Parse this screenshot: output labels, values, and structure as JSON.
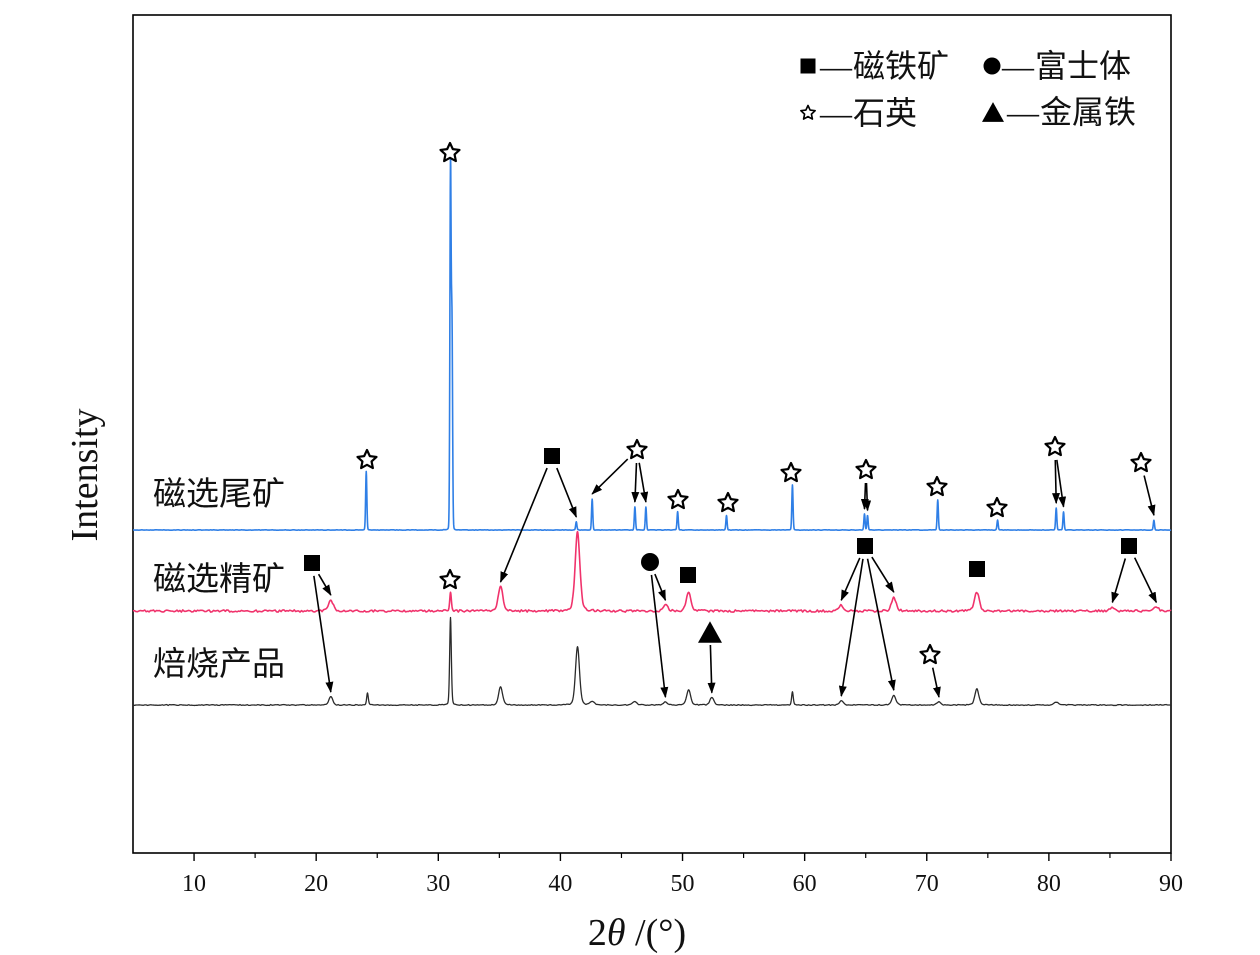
{
  "chart_data": {
    "type": "line",
    "title": "",
    "xlabel": "2θ /(°)",
    "ylabel": "Intensity",
    "xlim": [
      5,
      90
    ],
    "xticks": [
      10,
      20,
      30,
      40,
      50,
      60,
      70,
      80,
      90
    ],
    "yticks": [],
    "grid": false,
    "stacked": true,
    "series": [
      {
        "name": "磁选尾矿",
        "color": "#2f7fe6",
        "peaks": [
          [
            24.1,
            16
          ],
          [
            31.0,
            100
          ],
          [
            31.12,
            55
          ],
          [
            41.3,
            2.2
          ],
          [
            42.6,
            8.5
          ],
          [
            46.1,
            6.3
          ],
          [
            47.0,
            6.3
          ],
          [
            49.6,
            5
          ],
          [
            53.6,
            4
          ],
          [
            59.0,
            12.3
          ],
          [
            64.9,
            4.4
          ],
          [
            65.15,
            4
          ],
          [
            70.9,
            8.2
          ],
          [
            75.8,
            2.7
          ],
          [
            80.6,
            6
          ],
          [
            81.2,
            5
          ],
          [
            88.6,
            2.7
          ]
        ]
      },
      {
        "name": "磁选精矿",
        "color": "#f0336c",
        "peaks": [
          [
            21.2,
            3
          ],
          [
            31.0,
            5
          ],
          [
            35.1,
            6.6
          ],
          [
            41.4,
            21.6
          ],
          [
            48.6,
            1.6
          ],
          [
            50.5,
            5
          ],
          [
            63.0,
            1.6
          ],
          [
            67.3,
            3.8
          ],
          [
            74.1,
            5.2
          ],
          [
            85.2,
            1
          ],
          [
            88.8,
            1
          ]
        ]
      },
      {
        "name": "焙烧产品",
        "color": "#2a2a2a",
        "peaks": [
          [
            21.2,
            2.2
          ],
          [
            24.2,
            3.3
          ],
          [
            31.0,
            24
          ],
          [
            35.1,
            5
          ],
          [
            41.4,
            16
          ],
          [
            42.6,
            1
          ],
          [
            46.1,
            1
          ],
          [
            48.6,
            0.8
          ],
          [
            50.5,
            4.1
          ],
          [
            52.4,
            2
          ],
          [
            59.0,
            3.6
          ],
          [
            63.0,
            1.1
          ],
          [
            67.3,
            2.7
          ],
          [
            71.0,
            0.8
          ],
          [
            74.1,
            4.4
          ],
          [
            80.6,
            0.8
          ]
        ]
      }
    ],
    "legend": {
      "position": "top-right",
      "separator": "—",
      "entries": [
        {
          "marker": "square",
          "label": "磁铁矿"
        },
        {
          "marker": "circle",
          "label": "富士体"
        },
        {
          "marker": "star",
          "label": "石英"
        },
        {
          "marker": "triangle",
          "label": "金属铁"
        }
      ]
    },
    "annotations": [
      {
        "marker": "star",
        "targets": [
          [
            0,
            24.1
          ]
        ]
      },
      {
        "marker": "star",
        "targets": [
          [
            0,
            31.0
          ]
        ]
      },
      {
        "marker": "square",
        "targets": [
          [
            1,
            35.1
          ],
          [
            0,
            41.3
          ]
        ]
      },
      {
        "marker": "star",
        "targets": [
          [
            0,
            42.6
          ],
          [
            0,
            46.1
          ],
          [
            0,
            47.0
          ]
        ]
      },
      {
        "marker": "star",
        "targets": [
          [
            0,
            49.6
          ]
        ]
      },
      {
        "marker": "star",
        "targets": [
          [
            0,
            53.6
          ]
        ]
      },
      {
        "marker": "star",
        "targets": [
          [
            0,
            59.0
          ]
        ]
      },
      {
        "marker": "star",
        "targets": [
          [
            0,
            64.9
          ],
          [
            0,
            65.15
          ]
        ]
      },
      {
        "marker": "star",
        "targets": [
          [
            0,
            70.9
          ]
        ]
      },
      {
        "marker": "star",
        "targets": [
          [
            0,
            75.8
          ]
        ]
      },
      {
        "marker": "star",
        "targets": [
          [
            0,
            80.6
          ],
          [
            0,
            81.2
          ]
        ]
      },
      {
        "marker": "star",
        "targets": [
          [
            0,
            88.6
          ]
        ]
      },
      {
        "marker": "square",
        "targets": [
          [
            1,
            21.2
          ],
          [
            2,
            21.2
          ]
        ]
      },
      {
        "marker": "star",
        "targets": [
          [
            1,
            31.0
          ]
        ]
      },
      {
        "marker": "circle",
        "targets": [
          [
            1,
            48.6
          ],
          [
            2,
            48.6
          ]
        ]
      },
      {
        "marker": "square",
        "targets": [
          [
            1,
            50.5
          ]
        ]
      },
      {
        "marker": "square",
        "targets": [
          [
            1,
            63.0
          ],
          [
            1,
            67.3
          ],
          [
            2,
            63.0
          ],
          [
            2,
            67.3
          ]
        ]
      },
      {
        "marker": "square",
        "targets": [
          [
            1,
            74.1
          ]
        ]
      },
      {
        "marker": "square",
        "targets": [
          [
            1,
            85.2
          ],
          [
            1,
            88.8
          ]
        ]
      },
      {
        "marker": "triangle",
        "targets": [
          [
            2,
            52.4
          ]
        ]
      },
      {
        "marker": "star",
        "targets": [
          [
            2,
            71.0
          ]
        ]
      }
    ]
  }
}
